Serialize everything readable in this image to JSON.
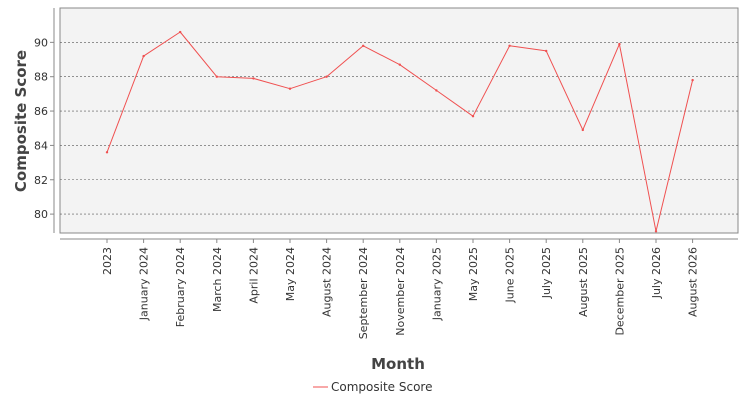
{
  "chart_data": {
    "type": "line",
    "title": "",
    "xlabel": "Month",
    "ylabel": "Composite Score",
    "categories": [
      "2023",
      "January 2024",
      "February 2024",
      "March 2024",
      "April 2024",
      "May 2024",
      "August 2024",
      "September 2024",
      "November 2024",
      "January 2025",
      "May 2025",
      "June 2025",
      "July 2025",
      "August 2025",
      "December 2025",
      "July 2026",
      "August 2026"
    ],
    "series": [
      {
        "name": "Composite Score",
        "color": "#f05050",
        "values": [
          83.6,
          89.2,
          90.6,
          88.0,
          87.9,
          87.3,
          88.0,
          89.8,
          88.7,
          87.2,
          85.7,
          89.8,
          89.5,
          84.9,
          89.9,
          79.0,
          87.8
        ]
      }
    ],
    "ylim": [
      78.9,
      92.0
    ],
    "yticks": [
      80,
      82,
      84,
      86,
      88,
      90
    ],
    "grid": true,
    "legend_position": "bottom-center"
  }
}
